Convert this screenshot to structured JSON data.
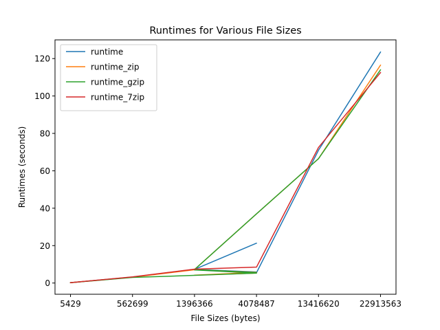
{
  "chart_data": {
    "type": "line",
    "title": "Runtimes for Various File Sizes",
    "xlabel": "File Sizes (bytes)",
    "ylabel": "Runtimes (seconds)",
    "categories": [
      "5429",
      "562699",
      "1396366",
      "4078487",
      "13416620",
      "22913563"
    ],
    "yticks": [
      0,
      20,
      40,
      60,
      80,
      100,
      120
    ],
    "ylim": [
      -6,
      130
    ],
    "grid": false,
    "legend_position": "top-left",
    "series": [
      {
        "name": "runtime",
        "color": "#1f77b4",
        "points": [
          [
            0,
            0.2
          ],
          [
            1,
            3.2
          ],
          [
            2,
            7.3
          ],
          [
            3,
            21.3
          ],
          [
            2,
            7.3
          ],
          [
            3,
            5.9
          ],
          [
            2,
            7.3
          ],
          [
            3,
            5.5
          ],
          [
            4,
            71.0
          ],
          [
            5,
            123.5
          ]
        ]
      },
      {
        "name": "runtime_zip",
        "color": "#ff7f0e",
        "points": [
          [
            0,
            0.2
          ],
          [
            1,
            3.1
          ],
          [
            2,
            7.1
          ],
          [
            3,
            5.7
          ],
          [
            2,
            4.2
          ],
          [
            3,
            5.3
          ],
          [
            2,
            7.2
          ],
          [
            3,
            37.0
          ],
          [
            4,
            66.5
          ],
          [
            5,
            116.5
          ]
        ]
      },
      {
        "name": "runtime_gzip",
        "color": "#2ca02c",
        "points": [
          [
            0,
            0.2
          ],
          [
            1,
            3.0
          ],
          [
            2,
            4.1
          ],
          [
            3,
            5.3
          ],
          [
            2,
            7.0
          ],
          [
            3,
            5.6
          ],
          [
            2,
            7.2
          ],
          [
            3,
            37.0
          ],
          [
            4,
            66.5
          ],
          [
            5,
            114.0
          ]
        ]
      },
      {
        "name": "runtime_7zip",
        "color": "#d62728",
        "points": [
          [
            0,
            0.2
          ],
          [
            1,
            3.3
          ],
          [
            2,
            7.4
          ],
          [
            3,
            8.5
          ],
          [
            4,
            72.5
          ],
          [
            5,
            112.5
          ]
        ]
      }
    ]
  }
}
